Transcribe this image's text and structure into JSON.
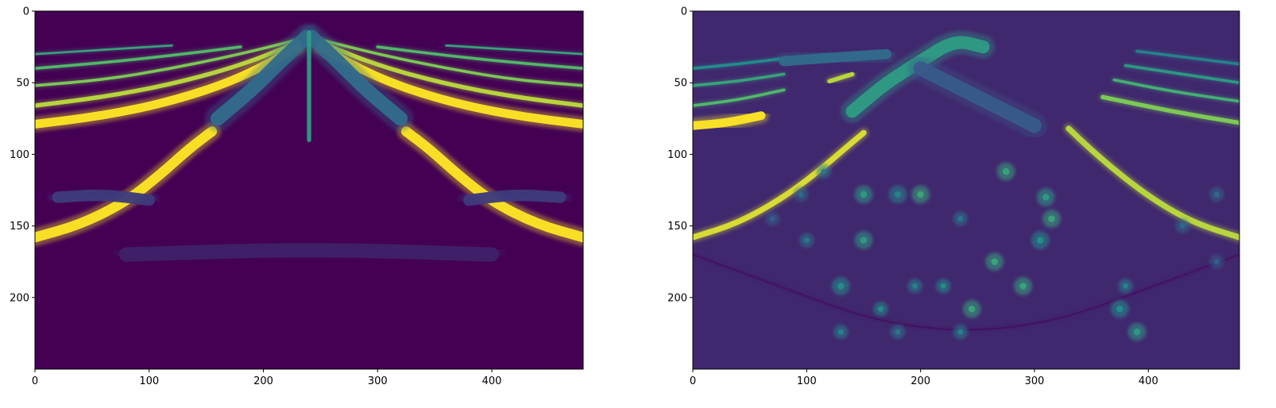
{
  "figure": {
    "background": "#ffffff",
    "colormap": "viridis",
    "colormap_low": "#440154",
    "colormap_high": "#fde725"
  },
  "chart_data": [
    {
      "type": "heatmap",
      "title": "",
      "xlabel": "",
      "ylabel": "",
      "xlim": [
        0,
        480
      ],
      "ylim": [
        250,
        0
      ],
      "y_inverted": true,
      "grid": false,
      "legend": "none",
      "xticks": [
        0,
        100,
        200,
        300,
        400
      ],
      "yticks": [
        0,
        50,
        100,
        150,
        200
      ],
      "background_value": 0.0,
      "features": [
        {
          "kind": "arc-band",
          "points": [
            [
              0,
              158
            ],
            [
              40,
              149
            ],
            [
              80,
              133
            ],
            [
              110,
              114
            ],
            [
              135,
              96
            ],
            [
              155,
              84
            ]
          ],
          "value": 1.0,
          "thickness": 7
        },
        {
          "kind": "arc-band",
          "points": [
            [
              325,
              84
            ],
            [
              345,
              96
            ],
            [
              370,
              114
            ],
            [
              400,
              133
            ],
            [
              440,
              149
            ],
            [
              480,
              158
            ]
          ],
          "value": 1.0,
          "thickness": 7
        },
        {
          "kind": "arc-band",
          "points": [
            [
              0,
              79
            ],
            [
              60,
              73
            ],
            [
              120,
              63
            ],
            [
              180,
              47
            ],
            [
              230,
              25
            ]
          ],
          "value": 1.0,
          "thickness": 6
        },
        {
          "kind": "arc-band",
          "points": [
            [
              250,
              25
            ],
            [
              300,
              47
            ],
            [
              360,
              63
            ],
            [
              420,
              73
            ],
            [
              480,
              79
            ]
          ],
          "value": 1.0,
          "thickness": 6
        },
        {
          "kind": "arc-band",
          "points": [
            [
              0,
              66
            ],
            [
              60,
              60
            ],
            [
              120,
              51
            ],
            [
              180,
              38
            ],
            [
              230,
              22
            ]
          ],
          "value": 0.9,
          "thickness": 3
        },
        {
          "kind": "arc-band",
          "points": [
            [
              250,
              22
            ],
            [
              300,
              38
            ],
            [
              360,
              51
            ],
            [
              420,
              60
            ],
            [
              480,
              66
            ]
          ],
          "value": 0.9,
          "thickness": 3
        },
        {
          "kind": "arc-band",
          "points": [
            [
              0,
              52
            ],
            [
              60,
              48
            ],
            [
              120,
              40
            ],
            [
              180,
              30
            ],
            [
              230,
              20
            ]
          ],
          "value": 0.8,
          "thickness": 2
        },
        {
          "kind": "arc-band",
          "points": [
            [
              250,
              20
            ],
            [
              300,
              30
            ],
            [
              360,
              40
            ],
            [
              420,
              48
            ],
            [
              480,
              52
            ]
          ],
          "value": 0.8,
          "thickness": 2
        },
        {
          "kind": "arc-band",
          "points": [
            [
              0,
              40
            ],
            [
              60,
              36
            ],
            [
              120,
              31
            ],
            [
              180,
              25
            ]
          ],
          "value": 0.7,
          "thickness": 2
        },
        {
          "kind": "arc-band",
          "points": [
            [
              300,
              25
            ],
            [
              360,
              31
            ],
            [
              420,
              36
            ],
            [
              480,
              40
            ]
          ],
          "value": 0.7,
          "thickness": 2
        },
        {
          "kind": "arc-band",
          "points": [
            [
              0,
              30
            ],
            [
              60,
              27
            ],
            [
              120,
              24
            ]
          ],
          "value": 0.6,
          "thickness": 1.5
        },
        {
          "kind": "arc-band",
          "points": [
            [
              360,
              24
            ],
            [
              420,
              27
            ],
            [
              480,
              30
            ]
          ],
          "value": 0.6,
          "thickness": 1.5
        },
        {
          "kind": "arc-band",
          "points": [
            [
              160,
              75
            ],
            [
              190,
              55
            ],
            [
              215,
              35
            ],
            [
              238,
              18
            ]
          ],
          "value": 0.35,
          "thickness": 10
        },
        {
          "kind": "arc-band",
          "points": [
            [
              242,
              18
            ],
            [
              265,
              35
            ],
            [
              290,
              55
            ],
            [
              320,
              75
            ]
          ],
          "value": 0.35,
          "thickness": 10
        },
        {
          "kind": "arc-band",
          "points": [
            [
              240,
              15
            ],
            [
              240,
              50
            ],
            [
              240,
              90
            ]
          ],
          "value": 0.55,
          "thickness": 3
        },
        {
          "kind": "arc-band",
          "points": [
            [
              20,
              130
            ],
            [
              60,
              128
            ],
            [
              100,
              132
            ]
          ],
          "value": 0.18,
          "thickness": 8
        },
        {
          "kind": "arc-band",
          "points": [
            [
              380,
              132
            ],
            [
              420,
              128
            ],
            [
              460,
              130
            ]
          ],
          "value": 0.18,
          "thickness": 8
        },
        {
          "kind": "arc-band",
          "points": [
            [
              80,
              170
            ],
            [
              240,
              166
            ],
            [
              400,
              170
            ]
          ],
          "value": 0.1,
          "thickness": 10
        }
      ]
    },
    {
      "type": "heatmap",
      "title": "",
      "xlabel": "",
      "ylabel": "",
      "xlim": [
        0,
        480
      ],
      "ylim": [
        250,
        0
      ],
      "y_inverted": true,
      "grid": false,
      "legend": "none",
      "xticks": [
        0,
        100,
        200,
        300,
        400
      ],
      "yticks": [
        0,
        50,
        100,
        150,
        200
      ],
      "background_value": 0.12,
      "features": [
        {
          "kind": "arc-band",
          "points": [
            [
              0,
              158
            ],
            [
              40,
              148
            ],
            [
              80,
              130
            ],
            [
              110,
              112
            ],
            [
              135,
              95
            ],
            [
              150,
              85
            ]
          ],
          "value": 0.95,
          "thickness": 4
        },
        {
          "kind": "arc-band",
          "points": [
            [
              330,
              82
            ],
            [
              350,
              97
            ],
            [
              375,
              114
            ],
            [
              405,
              132
            ],
            [
              440,
              148
            ],
            [
              480,
              158
            ]
          ],
          "value": 0.9,
          "thickness": 4
        },
        {
          "kind": "arc-band",
          "points": [
            [
              0,
              80
            ],
            [
              30,
              78
            ],
            [
              60,
              73
            ]
          ],
          "value": 1.0,
          "thickness": 6
        },
        {
          "kind": "arc-band",
          "points": [
            [
              120,
              49
            ],
            [
              140,
              44
            ]
          ],
          "value": 0.9,
          "thickness": 3
        },
        {
          "kind": "arc-band",
          "points": [
            [
              0,
              66
            ],
            [
              40,
              62
            ],
            [
              80,
              55
            ]
          ],
          "value": 0.7,
          "thickness": 2
        },
        {
          "kind": "arc-band",
          "points": [
            [
              0,
              52
            ],
            [
              40,
              49
            ],
            [
              80,
              44
            ]
          ],
          "value": 0.6,
          "thickness": 2
        },
        {
          "kind": "arc-band",
          "points": [
            [
              0,
              40
            ],
            [
              40,
              37
            ],
            [
              80,
              33
            ]
          ],
          "value": 0.5,
          "thickness": 2
        },
        {
          "kind": "arc-band",
          "points": [
            [
              360,
              60
            ],
            [
              420,
              70
            ],
            [
              480,
              78
            ]
          ],
          "value": 0.8,
          "thickness": 3
        },
        {
          "kind": "arc-band",
          "points": [
            [
              370,
              48
            ],
            [
              420,
              56
            ],
            [
              480,
              63
            ]
          ],
          "value": 0.65,
          "thickness": 2
        },
        {
          "kind": "arc-band",
          "points": [
            [
              380,
              38
            ],
            [
              430,
              44
            ],
            [
              480,
              50
            ]
          ],
          "value": 0.55,
          "thickness": 2
        },
        {
          "kind": "arc-band",
          "points": [
            [
              390,
              28
            ],
            [
              440,
              33
            ],
            [
              480,
              37
            ]
          ],
          "value": 0.45,
          "thickness": 2
        },
        {
          "kind": "arc-band",
          "points": [
            [
              140,
              70
            ],
            [
              170,
              50
            ],
            [
              200,
              35
            ],
            [
              230,
              20
            ],
            [
              255,
              25
            ]
          ],
          "value": 0.55,
          "thickness": 9
        },
        {
          "kind": "arc-band",
          "points": [
            [
              80,
              35
            ],
            [
              130,
              32
            ],
            [
              170,
              30
            ]
          ],
          "value": 0.35,
          "thickness": 7
        },
        {
          "kind": "arc-band",
          "points": [
            [
              0,
              170
            ],
            [
              240,
              240
            ],
            [
              480,
              170
            ]
          ],
          "value": 0.05,
          "thickness": 1
        },
        {
          "kind": "arc-band",
          "points": [
            [
              200,
              40
            ],
            [
              250,
              60
            ],
            [
              300,
              80
            ]
          ],
          "value": 0.28,
          "thickness": 10
        },
        {
          "kind": "spot",
          "points": [
            [
              275,
              112
            ]
          ],
          "value": 0.6,
          "thickness": 5
        },
        {
          "kind": "spot",
          "points": [
            [
              150,
              128
            ]
          ],
          "value": 0.55,
          "thickness": 5
        },
        {
          "kind": "spot",
          "points": [
            [
              180,
              128
            ]
          ],
          "value": 0.45,
          "thickness": 5
        },
        {
          "kind": "spot",
          "points": [
            [
              200,
              128
            ]
          ],
          "value": 0.6,
          "thickness": 5
        },
        {
          "kind": "spot",
          "points": [
            [
              310,
              130
            ]
          ],
          "value": 0.55,
          "thickness": 5
        },
        {
          "kind": "spot",
          "points": [
            [
              315,
              145
            ]
          ],
          "value": 0.6,
          "thickness": 5
        },
        {
          "kind": "spot",
          "points": [
            [
              235,
              145
            ]
          ],
          "value": 0.4,
          "thickness": 4
        },
        {
          "kind": "spot",
          "points": [
            [
              150,
              160
            ]
          ],
          "value": 0.55,
          "thickness": 5
        },
        {
          "kind": "spot",
          "points": [
            [
              100,
              160
            ]
          ],
          "value": 0.4,
          "thickness": 4
        },
        {
          "kind": "spot",
          "points": [
            [
              305,
              160
            ]
          ],
          "value": 0.5,
          "thickness": 5
        },
        {
          "kind": "spot",
          "points": [
            [
              265,
              175
            ]
          ],
          "value": 0.6,
          "thickness": 5
        },
        {
          "kind": "spot",
          "points": [
            [
              130,
              192
            ]
          ],
          "value": 0.5,
          "thickness": 5
        },
        {
          "kind": "spot",
          "points": [
            [
              195,
              192
            ]
          ],
          "value": 0.45,
          "thickness": 4
        },
        {
          "kind": "spot",
          "points": [
            [
              220,
              192
            ]
          ],
          "value": 0.5,
          "thickness": 4
        },
        {
          "kind": "spot",
          "points": [
            [
              290,
              192
            ]
          ],
          "value": 0.6,
          "thickness": 5
        },
        {
          "kind": "spot",
          "points": [
            [
              380,
              192
            ]
          ],
          "value": 0.45,
          "thickness": 4
        },
        {
          "kind": "spot",
          "points": [
            [
              165,
              208
            ]
          ],
          "value": 0.5,
          "thickness": 4
        },
        {
          "kind": "spot",
          "points": [
            [
              245,
              208
            ]
          ],
          "value": 0.6,
          "thickness": 5
        },
        {
          "kind": "spot",
          "points": [
            [
              375,
              208
            ]
          ],
          "value": 0.5,
          "thickness": 5
        },
        {
          "kind": "spot",
          "points": [
            [
              130,
              224
            ]
          ],
          "value": 0.45,
          "thickness": 4
        },
        {
          "kind": "spot",
          "points": [
            [
              180,
              224
            ]
          ],
          "value": 0.4,
          "thickness": 4
        },
        {
          "kind": "spot",
          "points": [
            [
              235,
              224
            ]
          ],
          "value": 0.45,
          "thickness": 4
        },
        {
          "kind": "spot",
          "points": [
            [
              390,
              224
            ]
          ],
          "value": 0.55,
          "thickness": 5
        },
        {
          "kind": "spot",
          "points": [
            [
              115,
              112
            ]
          ],
          "value": 0.4,
          "thickness": 4
        },
        {
          "kind": "spot",
          "points": [
            [
              95,
              128
            ]
          ],
          "value": 0.35,
          "thickness": 4
        },
        {
          "kind": "spot",
          "points": [
            [
              460,
              128
            ]
          ],
          "value": 0.35,
          "thickness": 4
        },
        {
          "kind": "spot",
          "points": [
            [
              430,
              150
            ]
          ],
          "value": 0.35,
          "thickness": 4
        },
        {
          "kind": "spot",
          "points": [
            [
              70,
              145
            ]
          ],
          "value": 0.3,
          "thickness": 4
        },
        {
          "kind": "spot",
          "points": [
            [
              460,
              175
            ]
          ],
          "value": 0.3,
          "thickness": 4
        }
      ]
    }
  ]
}
